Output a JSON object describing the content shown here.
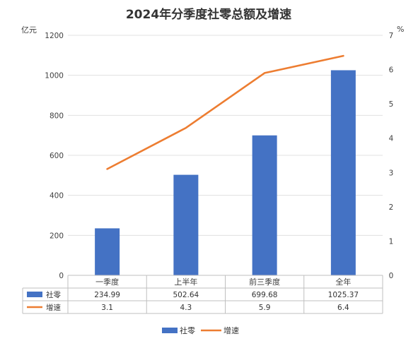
{
  "chart_data": {
    "type": "bar",
    "title": "2024年分季度社零总额及增速",
    "categories": [
      "一季度",
      "上半年",
      "前三季度",
      "全年"
    ],
    "left_axis": {
      "unit": "亿元",
      "range": [
        0,
        1200
      ],
      "ticks": [
        "0",
        "200",
        "400",
        "600",
        "800",
        "1000",
        "1200"
      ]
    },
    "right_axis": {
      "unit": "%",
      "range": [
        0,
        7
      ],
      "ticks": [
        "0",
        "1",
        "2",
        "3",
        "4",
        "5",
        "6",
        "7"
      ]
    },
    "series": [
      {
        "name": "社零",
        "kind": "bar",
        "axis": "left",
        "color": "#4472C4",
        "values": [
          234.99,
          502.64,
          699.68,
          1025.37
        ],
        "labels": [
          "234.99",
          "502.64",
          "699.68",
          "1025.37"
        ]
      },
      {
        "name": "增速",
        "kind": "line",
        "axis": "right",
        "color": "#ED7D31",
        "values": [
          3.1,
          4.3,
          5.9,
          6.4
        ],
        "labels": [
          "3.1",
          "4.3",
          "5.9",
          "6.4"
        ]
      }
    ],
    "grid": true,
    "data_table": true,
    "legend_position": "bottom"
  }
}
